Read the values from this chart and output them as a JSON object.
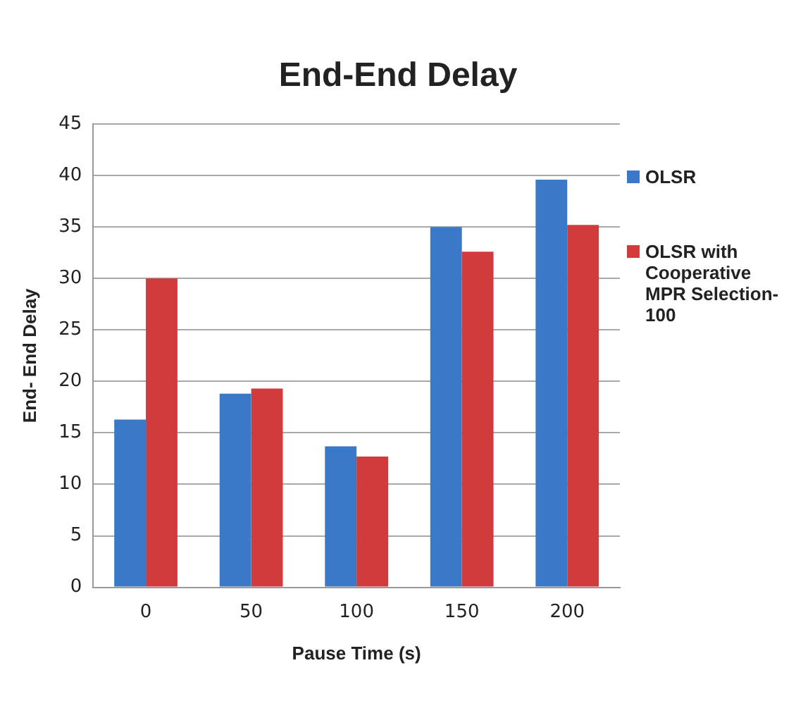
{
  "chart_data": {
    "type": "bar",
    "title": "End-End Delay",
    "xlabel": "Pause Time (s)",
    "ylabel": "End- End Delay",
    "categories": [
      "0",
      "50",
      "100",
      "150",
      "200"
    ],
    "series": [
      {
        "name": "OLSR",
        "color": "#3a78c8",
        "values": [
          16.3,
          18.8,
          13.7,
          35,
          39.6
        ]
      },
      {
        "name": "OLSR with Cooperative MPR Selection-100",
        "color": "#d23b3b",
        "values": [
          30,
          19.3,
          12.7,
          32.6,
          35.2
        ]
      }
    ],
    "ylim": [
      0,
      45
    ],
    "yticks": [
      0,
      5,
      10,
      15,
      20,
      25,
      30,
      35,
      40,
      45
    ],
    "grid": "y",
    "legend": "right"
  }
}
